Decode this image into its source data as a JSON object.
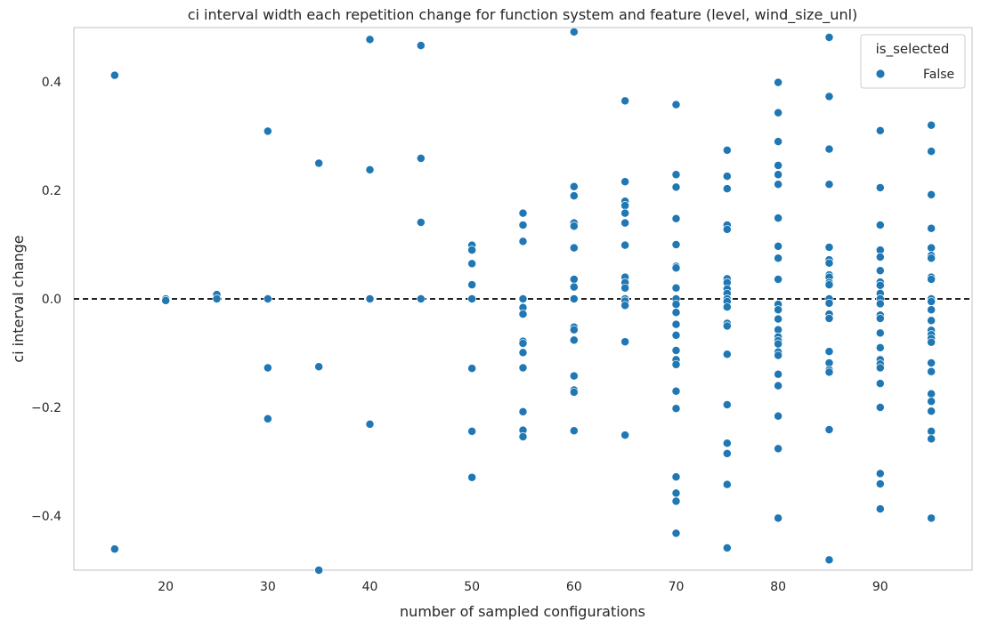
{
  "chart_data": {
    "type": "scatter",
    "title": "ci interval width each repetition change for function system and feature (level, wind_size_unl)",
    "xlabel": "number of sampled configurations",
    "ylabel": "ci interval change",
    "xlim": [
      11,
      99
    ],
    "ylim": [
      -0.5,
      0.5
    ],
    "xticks": [
      20,
      30,
      40,
      50,
      60,
      70,
      80,
      90
    ],
    "yticks": [
      -0.4,
      -0.2,
      0.0,
      0.2,
      0.4
    ],
    "xtick_labels": [
      "20",
      "30",
      "40",
      "50",
      "60",
      "70",
      "80",
      "90"
    ],
    "ytick_labels": [
      "−0.4",
      "−0.2",
      "0.0",
      "0.2",
      "0.4"
    ],
    "grid": false,
    "reference_line": {
      "y": 0.0,
      "style": "dashed",
      "color": "#000000"
    },
    "legend": {
      "title": "is_selected",
      "position": "top-right",
      "entries": [
        "False"
      ]
    },
    "series": [
      {
        "name": "False",
        "color": "#1f77b4",
        "points": [
          [
            15,
            0.412
          ],
          [
            15,
            -0.461
          ],
          [
            20,
            0.0
          ],
          [
            20,
            -0.003
          ],
          [
            25,
            0.008
          ],
          [
            25,
            0.0
          ],
          [
            30,
            0.309
          ],
          [
            30,
            0.0
          ],
          [
            30,
            -0.127
          ],
          [
            30,
            -0.221
          ],
          [
            35,
            0.25
          ],
          [
            35,
            -0.125
          ],
          [
            35,
            -0.5
          ],
          [
            40,
            0.478
          ],
          [
            40,
            0.238
          ],
          [
            40,
            0.0
          ],
          [
            40,
            -0.231
          ],
          [
            45,
            0.467
          ],
          [
            45,
            0.259
          ],
          [
            45,
            0.141
          ],
          [
            45,
            0.0
          ],
          [
            50,
            0.099
          ],
          [
            50,
            0.09
          ],
          [
            50,
            0.065
          ],
          [
            50,
            0.026
          ],
          [
            50,
            0.0
          ],
          [
            50,
            -0.128
          ],
          [
            50,
            -0.244
          ],
          [
            50,
            -0.329
          ],
          [
            55,
            0.158
          ],
          [
            55,
            0.136
          ],
          [
            55,
            0.106
          ],
          [
            55,
            0.0
          ],
          [
            55,
            -0.016
          ],
          [
            55,
            -0.028
          ],
          [
            55,
            -0.078
          ],
          [
            55,
            -0.082
          ],
          [
            55,
            -0.099
          ],
          [
            55,
            -0.127
          ],
          [
            55,
            -0.208
          ],
          [
            55,
            -0.242
          ],
          [
            55,
            -0.254
          ],
          [
            60,
            0.492
          ],
          [
            60,
            0.207
          ],
          [
            60,
            0.19
          ],
          [
            60,
            0.14
          ],
          [
            60,
            0.134
          ],
          [
            60,
            0.094
          ],
          [
            60,
            0.036
          ],
          [
            60,
            0.022
          ],
          [
            60,
            0.0
          ],
          [
            60,
            -0.052
          ],
          [
            60,
            -0.057
          ],
          [
            60,
            -0.076
          ],
          [
            60,
            -0.142
          ],
          [
            60,
            -0.168
          ],
          [
            60,
            -0.172
          ],
          [
            60,
            -0.243
          ],
          [
            65,
            0.365
          ],
          [
            65,
            0.216
          ],
          [
            65,
            0.18
          ],
          [
            65,
            0.172
          ],
          [
            65,
            0.158
          ],
          [
            65,
            0.14
          ],
          [
            65,
            0.099
          ],
          [
            65,
            0.04
          ],
          [
            65,
            0.03
          ],
          [
            65,
            0.02
          ],
          [
            65,
            0.0
          ],
          [
            65,
            -0.004
          ],
          [
            65,
            -0.012
          ],
          [
            65,
            -0.079
          ],
          [
            65,
            -0.251
          ],
          [
            70,
            0.358
          ],
          [
            70,
            0.229
          ],
          [
            70,
            0.206
          ],
          [
            70,
            0.148
          ],
          [
            70,
            0.1
          ],
          [
            70,
            0.06
          ],
          [
            70,
            0.057
          ],
          [
            70,
            0.02
          ],
          [
            70,
            0.0
          ],
          [
            70,
            -0.01
          ],
          [
            70,
            -0.025
          ],
          [
            70,
            -0.047
          ],
          [
            70,
            -0.067
          ],
          [
            70,
            -0.095
          ],
          [
            70,
            -0.112
          ],
          [
            70,
            -0.121
          ],
          [
            70,
            -0.17
          ],
          [
            70,
            -0.202
          ],
          [
            70,
            -0.328
          ],
          [
            70,
            -0.358
          ],
          [
            70,
            -0.373
          ],
          [
            70,
            -0.432
          ],
          [
            75,
            0.274
          ],
          [
            75,
            0.226
          ],
          [
            75,
            0.203
          ],
          [
            75,
            0.136
          ],
          [
            75,
            0.128
          ],
          [
            75,
            0.037
          ],
          [
            75,
            0.03
          ],
          [
            75,
            0.018
          ],
          [
            75,
            0.01
          ],
          [
            75,
            0.0
          ],
          [
            75,
            -0.005
          ],
          [
            75,
            -0.015
          ],
          [
            75,
            -0.045
          ],
          [
            75,
            -0.05
          ],
          [
            75,
            -0.102
          ],
          [
            75,
            -0.195
          ],
          [
            75,
            -0.266
          ],
          [
            75,
            -0.285
          ],
          [
            75,
            -0.342
          ],
          [
            75,
            -0.459
          ],
          [
            80,
            0.399
          ],
          [
            80,
            0.343
          ],
          [
            80,
            0.29
          ],
          [
            80,
            0.246
          ],
          [
            80,
            0.229
          ],
          [
            80,
            0.211
          ],
          [
            80,
            0.149
          ],
          [
            80,
            0.097
          ],
          [
            80,
            0.075
          ],
          [
            80,
            0.036
          ],
          [
            80,
            -0.01
          ],
          [
            80,
            -0.02
          ],
          [
            80,
            -0.037
          ],
          [
            80,
            -0.057
          ],
          [
            80,
            -0.07
          ],
          [
            80,
            -0.077
          ],
          [
            80,
            -0.083
          ],
          [
            80,
            -0.098
          ],
          [
            80,
            -0.104
          ],
          [
            80,
            -0.139
          ],
          [
            80,
            -0.16
          ],
          [
            80,
            -0.216
          ],
          [
            80,
            -0.276
          ],
          [
            80,
            -0.404
          ],
          [
            85,
            0.482
          ],
          [
            85,
            0.373
          ],
          [
            85,
            0.276
          ],
          [
            85,
            0.211
          ],
          [
            85,
            0.095
          ],
          [
            85,
            0.072
          ],
          [
            85,
            0.066
          ],
          [
            85,
            0.044
          ],
          [
            85,
            0.04
          ],
          [
            85,
            0.03
          ],
          [
            85,
            0.026
          ],
          [
            85,
            0.0
          ],
          [
            85,
            -0.008
          ],
          [
            85,
            -0.028
          ],
          [
            85,
            -0.036
          ],
          [
            85,
            -0.097
          ],
          [
            85,
            -0.118
          ],
          [
            85,
            -0.131
          ],
          [
            85,
            -0.135
          ],
          [
            85,
            -0.241
          ],
          [
            85,
            -0.481
          ],
          [
            90,
            0.31
          ],
          [
            90,
            0.205
          ],
          [
            90,
            0.136
          ],
          [
            90,
            0.09
          ],
          [
            90,
            0.077
          ],
          [
            90,
            0.052
          ],
          [
            90,
            0.031
          ],
          [
            90,
            0.025
          ],
          [
            90,
            0.01
          ],
          [
            90,
            0.0
          ],
          [
            90,
            -0.009
          ],
          [
            90,
            -0.03
          ],
          [
            90,
            -0.036
          ],
          [
            90,
            -0.063
          ],
          [
            90,
            -0.09
          ],
          [
            90,
            -0.112
          ],
          [
            90,
            -0.12
          ],
          [
            90,
            -0.127
          ],
          [
            90,
            -0.156
          ],
          [
            90,
            -0.2
          ],
          [
            90,
            -0.322
          ],
          [
            90,
            -0.341
          ],
          [
            90,
            -0.387
          ],
          [
            95,
            0.32
          ],
          [
            95,
            0.272
          ],
          [
            95,
            0.192
          ],
          [
            95,
            0.13
          ],
          [
            95,
            0.094
          ],
          [
            95,
            0.08
          ],
          [
            95,
            0.075
          ],
          [
            95,
            0.04
          ],
          [
            95,
            0.036
          ],
          [
            95,
            0.0
          ],
          [
            95,
            -0.005
          ],
          [
            95,
            -0.02
          ],
          [
            95,
            -0.04
          ],
          [
            95,
            -0.058
          ],
          [
            95,
            -0.066
          ],
          [
            95,
            -0.073
          ],
          [
            95,
            -0.08
          ],
          [
            95,
            -0.118
          ],
          [
            95,
            -0.134
          ],
          [
            95,
            -0.175
          ],
          [
            95,
            -0.189
          ],
          [
            95,
            -0.207
          ],
          [
            95,
            -0.244
          ],
          [
            95,
            -0.258
          ],
          [
            95,
            -0.404
          ]
        ]
      }
    ]
  }
}
